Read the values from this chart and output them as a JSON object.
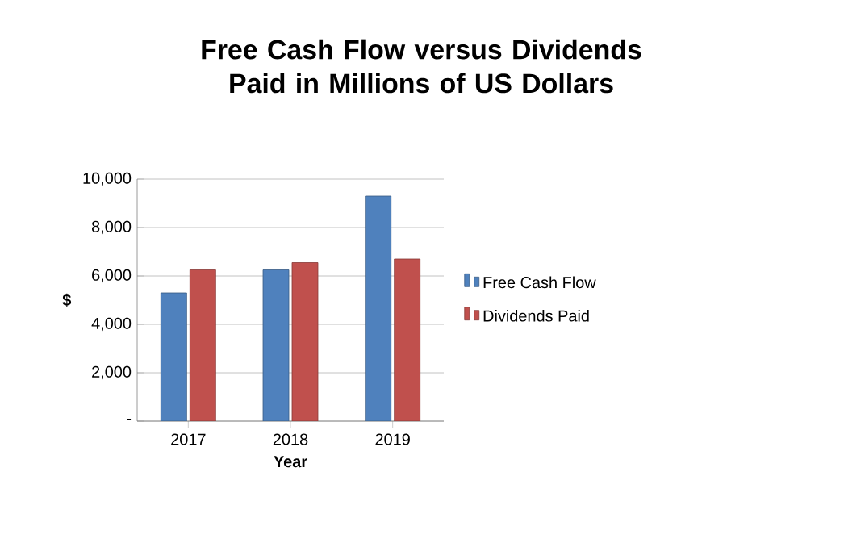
{
  "chart_data": {
    "type": "bar",
    "title": "Free Cash Flow versus Dividends Paid in Millions of US Dollars",
    "xlabel": "Year",
    "ylabel": "$",
    "categories": [
      "2017",
      "2018",
      "2019"
    ],
    "series": [
      {
        "name": "Free Cash Flow",
        "color": "#4f81bd",
        "values": [
          5300,
          6250,
          9300
        ]
      },
      {
        "name": "Dividends Paid",
        "color": "#c0504d",
        "values": [
          6250,
          6550,
          6700
        ]
      }
    ],
    "ylim": [
      0,
      10000
    ],
    "yticks": [
      {
        "value": 0,
        "label": "-"
      },
      {
        "value": 2000,
        "label": "2,000"
      },
      {
        "value": 4000,
        "label": "4,000"
      },
      {
        "value": 6000,
        "label": "6,000"
      },
      {
        "value": 8000,
        "label": "8,000"
      },
      {
        "value": 10000,
        "label": "10,000"
      }
    ],
    "grid": "y",
    "legend": "right"
  }
}
